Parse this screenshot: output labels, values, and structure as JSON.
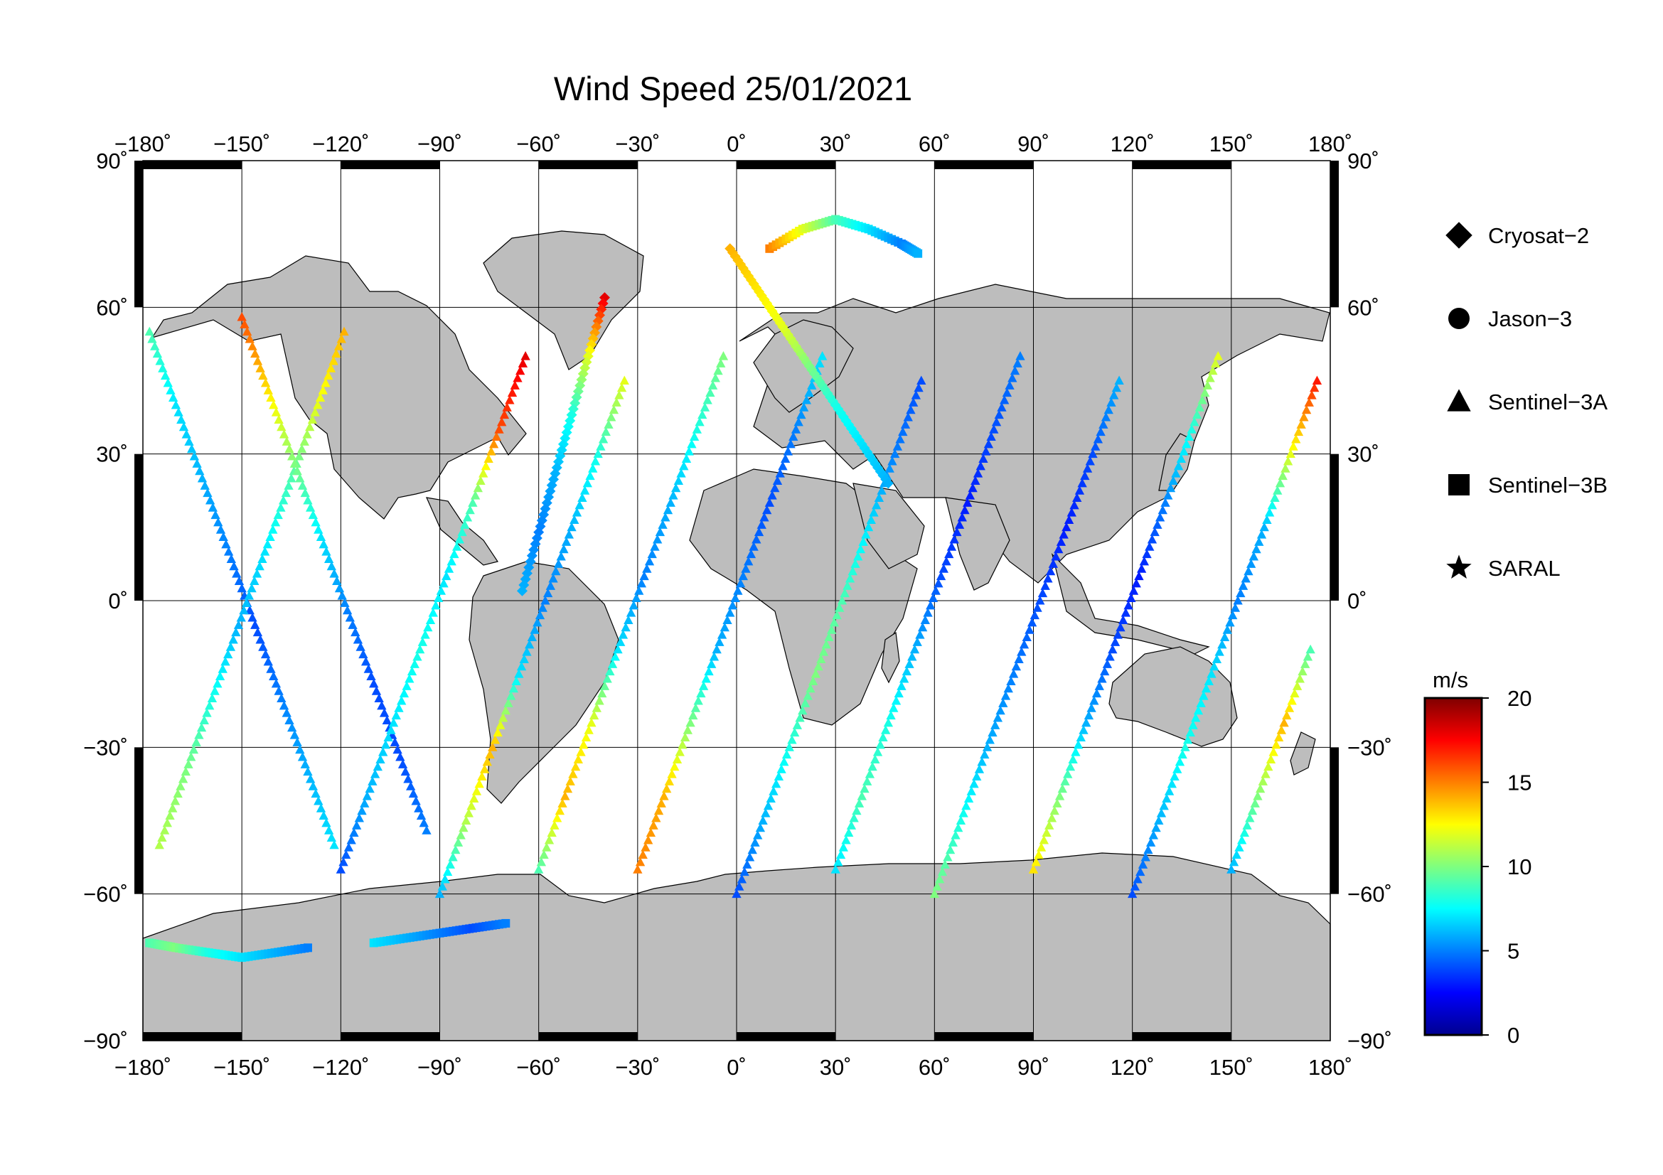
{
  "title": "Wind Speed 25/01/2021",
  "map": {
    "projection": "equirectangular",
    "lon_range": [
      -180,
      180
    ],
    "lat_range": [
      -90,
      90
    ],
    "grid_lon": [
      -150,
      -120,
      -90,
      -60,
      -30,
      0,
      30,
      60,
      90,
      120,
      150
    ],
    "grid_lat": [
      -60,
      -30,
      0,
      30,
      60
    ],
    "land_color": "#bdbdbd",
    "ocean_color": "#ffffff",
    "frame_band_color": "#000000"
  },
  "axes": {
    "lon_ticks": [
      "−180˚",
      "−150˚",
      "−120˚",
      "−90˚",
      "−60˚",
      "−30˚",
      "0˚",
      "30˚",
      "60˚",
      "90˚",
      "120˚",
      "150˚",
      "180˚"
    ],
    "lat_ticks": [
      "90˚",
      "60˚",
      "30˚",
      "0˚",
      "−30˚",
      "−60˚",
      "−90˚"
    ],
    "lat_tick_values": [
      90,
      60,
      30,
      0,
      -30,
      -60,
      -90
    ]
  },
  "legend": {
    "items": [
      {
        "label": "Cryosat−2",
        "marker": "diamond"
      },
      {
        "label": "Jason−3",
        "marker": "circle"
      },
      {
        "label": "Sentinel−3A",
        "marker": "triangle"
      },
      {
        "label": "Sentinel−3B",
        "marker": "square"
      },
      {
        "label": "SARAL",
        "marker": "star"
      }
    ]
  },
  "colorbar": {
    "unit": "m/s",
    "min": 0,
    "max": 20,
    "tick_labels": [
      "20",
      "15",
      "10",
      "5",
      "0"
    ],
    "tick_values": [
      20,
      15,
      10,
      5,
      0
    ],
    "colormap": "jet",
    "colors": [
      "#00008f",
      "#0000ff",
      "#007fff",
      "#00ffff",
      "#7fff7f",
      "#ffff00",
      "#ff7f00",
      "#ff0000",
      "#7f0000"
    ]
  },
  "chart_data": {
    "type": "scatter",
    "title": "Wind Speed 25/01/2021",
    "xlabel": "",
    "ylabel": "",
    "xlim": [
      -180,
      180
    ],
    "ylim": [
      -90,
      90
    ],
    "colorbar_label": "m/s",
    "colorbar_range": [
      0,
      20
    ],
    "series": [
      {
        "name": "Sentinel−3A",
        "marker": "triangle",
        "tracks": [
          {
            "x": [
              -178,
              -170,
              -162,
              -154,
              -146,
              -138,
              -130,
              -122
            ],
            "y": [
              55,
              40,
              25,
              10,
              -5,
              -20,
              -35,
              -50
            ],
            "values": [
              9,
              7,
              6,
              5,
              4,
              5,
              6,
              7
            ]
          },
          {
            "x": [
              -175,
              -167,
              -159,
              -151,
              -143,
              -135,
              -127,
              -119
            ],
            "y": [
              -50,
              -35,
              -20,
              -5,
              10,
              25,
              40,
              55
            ],
            "values": [
              11,
              10,
              8,
              6,
              7,
              9,
              12,
              14
            ]
          },
          {
            "x": [
              -150,
              -142,
              -134,
              -126,
              -118,
              -110,
              -102,
              -94
            ],
            "y": [
              58,
              43,
              28,
              13,
              -2,
              -17,
              -32,
              -47
            ],
            "values": [
              16,
              13,
              10,
              7,
              5,
              4,
              4,
              5
            ]
          },
          {
            "x": [
              -120,
              -112,
              -104,
              -96,
              -88,
              -80,
              -72,
              -64
            ],
            "y": [
              -55,
              -40,
              -25,
              -10,
              5,
              20,
              35,
              50
            ],
            "values": [
              4,
              6,
              7,
              8,
              7,
              9,
              16,
              18
            ]
          },
          {
            "x": [
              -90,
              -82,
              -74,
              -66,
              -58,
              -50,
              -42,
              -34
            ],
            "y": [
              -60,
              -45,
              -30,
              -15,
              0,
              15,
              30,
              45
            ],
            "values": [
              6,
              11,
              14,
              7,
              5,
              6,
              8,
              12
            ]
          },
          {
            "x": [
              -60,
              -52,
              -44,
              -36,
              -28,
              -20,
              -12,
              -4
            ],
            "y": [
              -55,
              -40,
              -25,
              -10,
              5,
              20,
              35,
              50
            ],
            "values": [
              9,
              14,
              12,
              7,
              5,
              6,
              8,
              10
            ]
          },
          {
            "x": [
              -30,
              -22,
              -14,
              -6,
              2,
              10,
              18,
              26
            ],
            "y": [
              -55,
              -40,
              -25,
              -10,
              5,
              20,
              35,
              50
            ],
            "values": [
              15,
              14,
              10,
              6,
              5,
              4,
              5,
              7
            ]
          },
          {
            "x": [
              0,
              8,
              16,
              24,
              32,
              40,
              48,
              56
            ],
            "y": [
              -60,
              -45,
              -30,
              -15,
              0,
              15,
              30,
              45
            ],
            "values": [
              4,
              6,
              8,
              10,
              9,
              7,
              5,
              4
            ]
          },
          {
            "x": [
              30,
              38,
              46,
              54,
              62,
              70,
              78,
              86
            ],
            "y": [
              -55,
              -40,
              -25,
              -10,
              5,
              20,
              35,
              50
            ],
            "values": [
              7,
              9,
              8,
              6,
              4,
              3,
              4,
              5
            ]
          },
          {
            "x": [
              60,
              68,
              76,
              84,
              92,
              100,
              108,
              116
            ],
            "y": [
              -60,
              -45,
              -30,
              -15,
              0,
              15,
              30,
              45
            ],
            "values": [
              10,
              8,
              6,
              5,
              4,
              3,
              4,
              6
            ]
          },
          {
            "x": [
              90,
              98,
              106,
              114,
              122,
              130,
              138,
              146
            ],
            "y": [
              -55,
              -40,
              -25,
              -10,
              5,
              20,
              35,
              50
            ],
            "values": [
              13,
              10,
              6,
              4,
              3,
              5,
              8,
              12
            ]
          },
          {
            "x": [
              120,
              128,
              136,
              144,
              152,
              160,
              168,
              176
            ],
            "y": [
              -60,
              -45,
              -30,
              -15,
              0,
              15,
              30,
              45
            ],
            "values": [
              4,
              6,
              8,
              7,
              5,
              6,
              12,
              17
            ]
          },
          {
            "x": [
              150,
              158,
              166,
              174
            ],
            "y": [
              -55,
              -40,
              -25,
              -10
            ],
            "values": [
              6,
              10,
              14,
              9
            ]
          }
        ]
      },
      {
        "name": "Sentinel−3B",
        "marker": "square",
        "tracks": [
          {
            "x": [
              -178,
              -170,
              -160,
              -150,
              -140,
              -130
            ],
            "y": [
              -70,
              -71,
              -72,
              -73,
              -72,
              -71
            ],
            "values": [
              9,
              10,
              8,
              7,
              6,
              5
            ]
          },
          {
            "x": [
              10,
              20,
              30,
              40,
              50,
              55
            ],
            "y": [
              72,
              76,
              78,
              76,
              73,
              71
            ],
            "values": [
              15,
              12,
              9,
              7,
              5,
              6
            ]
          },
          {
            "x": [
              -110,
              -100,
              -90,
              -80,
              -70
            ],
            "y": [
              -70,
              -69,
              -68,
              -67,
              -66
            ],
            "values": [
              7,
              6,
              5,
              4,
              5
            ]
          }
        ]
      },
      {
        "name": "Cryosat−2",
        "marker": "diamond",
        "tracks": [
          {
            "x": [
              -2,
              6,
              14,
              22,
              30,
              38,
              46
            ],
            "y": [
              72,
              64,
              56,
              48,
              40,
              32,
              24
            ],
            "values": [
              14,
              13,
              12,
              10,
              8,
              7,
              6
            ]
          },
          {
            "x": [
              -40,
              -45,
              -50,
              -55,
              -60,
              -65
            ],
            "y": [
              62,
              50,
              38,
              26,
              14,
              2
            ],
            "values": [
              18,
              12,
              8,
              6,
              5,
              6
            ]
          }
        ]
      }
    ]
  }
}
